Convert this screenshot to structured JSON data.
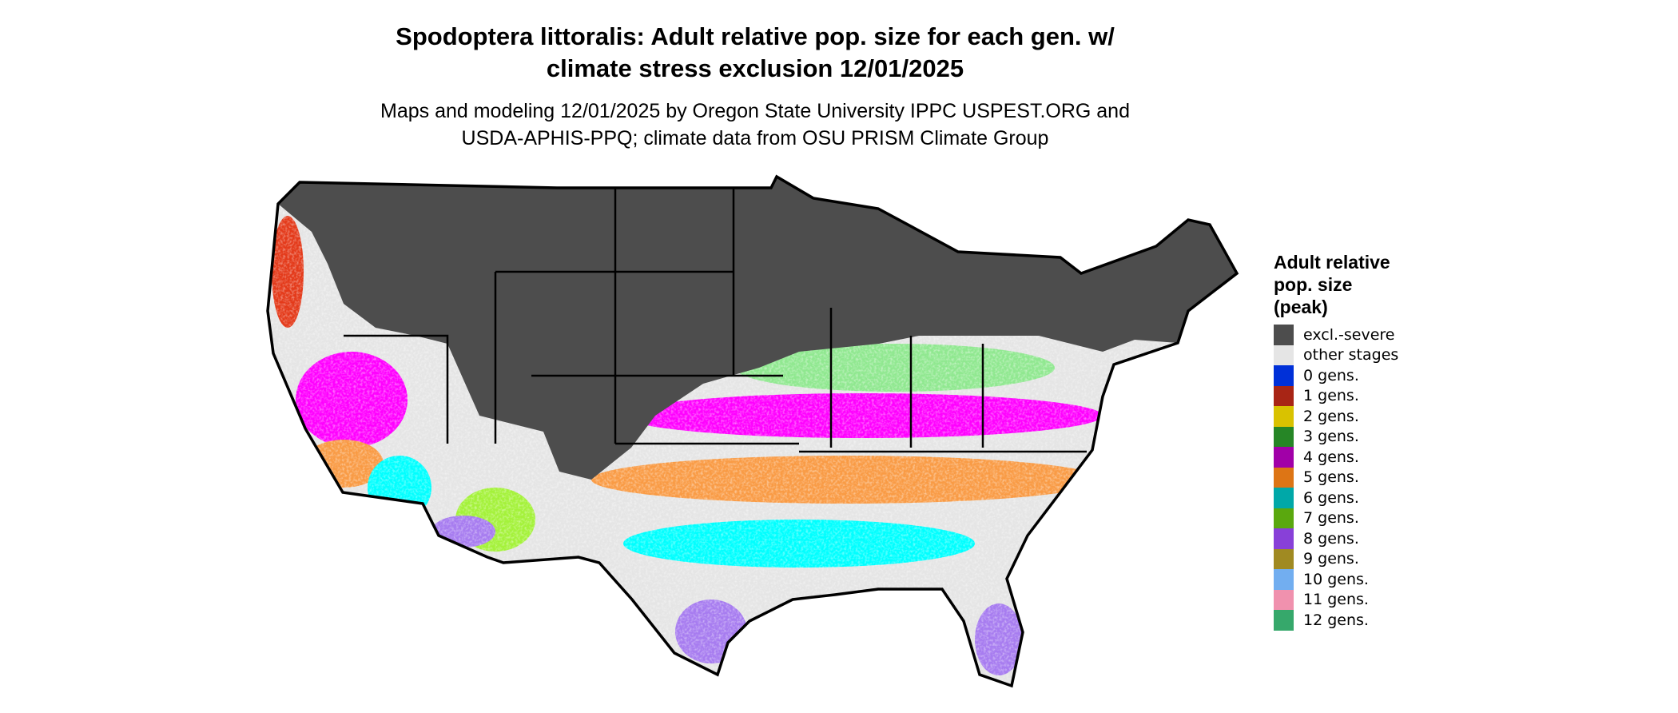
{
  "title_line1": "Spodoptera littoralis: Adult relative pop. size for each gen. w/",
  "title_line2": "climate stress exclusion 12/01/2025",
  "subtitle_line1": "Maps and modeling 12/01/2025 by Oregon State University IPPC USPEST.ORG and",
  "subtitle_line2": "USDA-APHIS-PPQ; climate data from OSU PRISM Climate Group",
  "map": {
    "region": "Contiguous United States",
    "state_borders": true
  },
  "legend": {
    "title_lines": [
      "Adult relative",
      "pop. size",
      "(peak)"
    ],
    "items": [
      {
        "label": "excl.-severe",
        "color": "#4d4d4d"
      },
      {
        "label": "other stages",
        "color": "#e5e5e5"
      },
      {
        "label": "0 gens.",
        "color": "#0030d8"
      },
      {
        "label": "1 gens.",
        "color": "#a82515"
      },
      {
        "label": "2 gens.",
        "color": "#d9c200"
      },
      {
        "label": "3 gens.",
        "color": "#268626"
      },
      {
        "label": "4 gens.",
        "color": "#a100a8"
      },
      {
        "label": "5 gens.",
        "color": "#dd7515"
      },
      {
        "label": "6 gens.",
        "color": "#00a8a8"
      },
      {
        "label": "7 gens.",
        "color": "#5aa80e"
      },
      {
        "label": "8 gens.",
        "color": "#8840d8"
      },
      {
        "label": "9 gens.",
        "color": "#a08a22"
      },
      {
        "label": "10 gens.",
        "color": "#72aef0"
      },
      {
        "label": "11 gens.",
        "color": "#f091ae"
      },
      {
        "label": "12 gens.",
        "color": "#36a86b"
      }
    ]
  }
}
